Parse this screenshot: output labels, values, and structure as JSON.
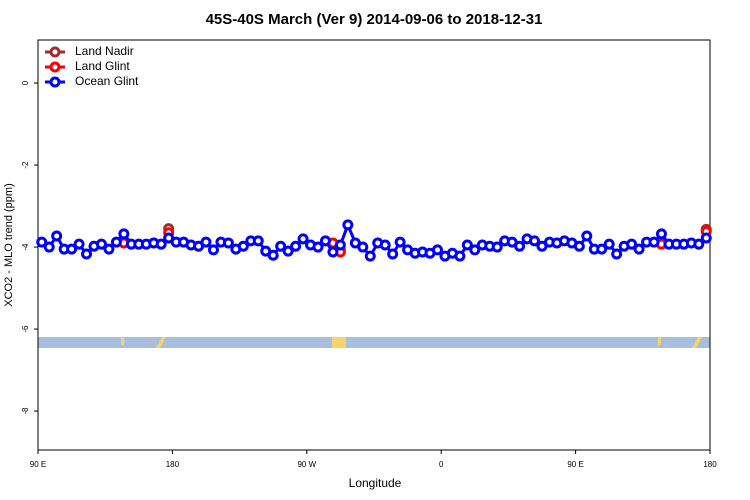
{
  "chart_data": {
    "type": "line",
    "title": "45S-40S March (Ver 9)   2014-09-06 to 2018-12-31",
    "x_label": "Longitude",
    "y_label": "XCO2 - MLO trend (ppm)",
    "xlim": [
      90,
      540
    ],
    "xticks": [
      {
        "value": 90,
        "label": "90 E"
      },
      180,
      {
        "value": 270,
        "label": "90 W"
      },
      {
        "value": 360,
        "label": "0"
      },
      {
        "value": 450,
        "label": "90 E"
      },
      {
        "value": 540,
        "label": "180"
      }
    ],
    "ylim": [
      -8.95,
      1.05
    ],
    "yticks": [
      0,
      -2,
      -4,
      -6,
      -8
    ],
    "legend": "top-left",
    "series": [
      {
        "name": "Land Nadir",
        "color": "#a52a2a",
        "x": [
          177.5,
          240,
          292.5,
          400,
          537.5
        ],
        "values": [
          -3.55,
          null,
          -4.07,
          null,
          -3.57
        ]
      },
      {
        "name": "Land Glint",
        "color": "#ff0000",
        "x": [
          147.5,
          160,
          177.5,
          240,
          287.5,
          292.5,
          400,
          507.5,
          520,
          537.5
        ],
        "values": [
          -3.9,
          null,
          -3.65,
          null,
          -3.9,
          -4.12,
          null,
          -3.93,
          null,
          -3.62
        ]
      },
      {
        "name": "Ocean Glint",
        "color": "#0000ff",
        "x": [
          92.5,
          97.5,
          102.5,
          107.5,
          112.5,
          117.5,
          122.5,
          127.5,
          132.5,
          137.5,
          142.5,
          147.5,
          152.5,
          157.5,
          162.5,
          167.5,
          172.5,
          177.5,
          182.5,
          187.5,
          192.5,
          197.5,
          202.5,
          207.5,
          212.5,
          217.5,
          222.5,
          227.5,
          232.5,
          237.5,
          242.5,
          247.5,
          252.5,
          257.5,
          262.5,
          267.5,
          272.5,
          277.5,
          282.5,
          287.5,
          292.5,
          297.5,
          302.5,
          307.5,
          312.5,
          317.5,
          322.5,
          327.5,
          332.5,
          337.5,
          342.5,
          347.5,
          352.5,
          357.5,
          362.5,
          367.5,
          372.5,
          377.5,
          382.5,
          387.5,
          392.5,
          397.5,
          402.5,
          407.5,
          412.5,
          417.5,
          422.5,
          427.5,
          432.5,
          437.5,
          442.5,
          447.5,
          452.5,
          457.5,
          462.5,
          467.5,
          472.5,
          477.5,
          482.5,
          487.5,
          492.5,
          497.5,
          502.5,
          507.5,
          512.5,
          517.5,
          522.5,
          527.5,
          532.5,
          537.5
        ],
        "values": [
          -3.88,
          -4.0,
          -3.73,
          -4.05,
          -4.05,
          -3.93,
          -4.17,
          -3.98,
          -3.93,
          -4.05,
          -3.88,
          -3.68,
          -3.93,
          -3.93,
          -3.93,
          -3.9,
          -3.93,
          -3.78,
          -3.88,
          -3.88,
          -3.95,
          -3.98,
          -3.88,
          -4.07,
          -3.88,
          -3.9,
          -4.05,
          -3.98,
          -3.85,
          -3.85,
          -4.1,
          -4.2,
          -3.98,
          -4.1,
          -3.98,
          -3.8,
          -3.95,
          -4.0,
          -3.85,
          -4.12,
          -3.95,
          -3.46,
          -3.9,
          -4.0,
          -4.22,
          -3.9,
          -3.95,
          -4.17,
          -3.88,
          -4.07,
          -4.15,
          -4.12,
          -4.15,
          -4.07,
          -4.22,
          -4.15,
          -4.22,
          -3.95,
          -4.07,
          -3.95,
          -3.98,
          -4.0,
          -3.85,
          -3.88,
          -3.98,
          -3.8,
          -3.85,
          -3.98,
          -3.88,
          -3.9,
          -3.85,
          -3.9,
          -3.98,
          -3.73,
          -4.05,
          -4.05,
          -3.93,
          -4.17,
          -3.98,
          -3.93,
          -4.05,
          -3.88,
          -3.88,
          -3.68,
          -3.93,
          -3.93,
          -3.93,
          -3.9,
          -3.93,
          -3.78
        ]
      }
    ]
  }
}
